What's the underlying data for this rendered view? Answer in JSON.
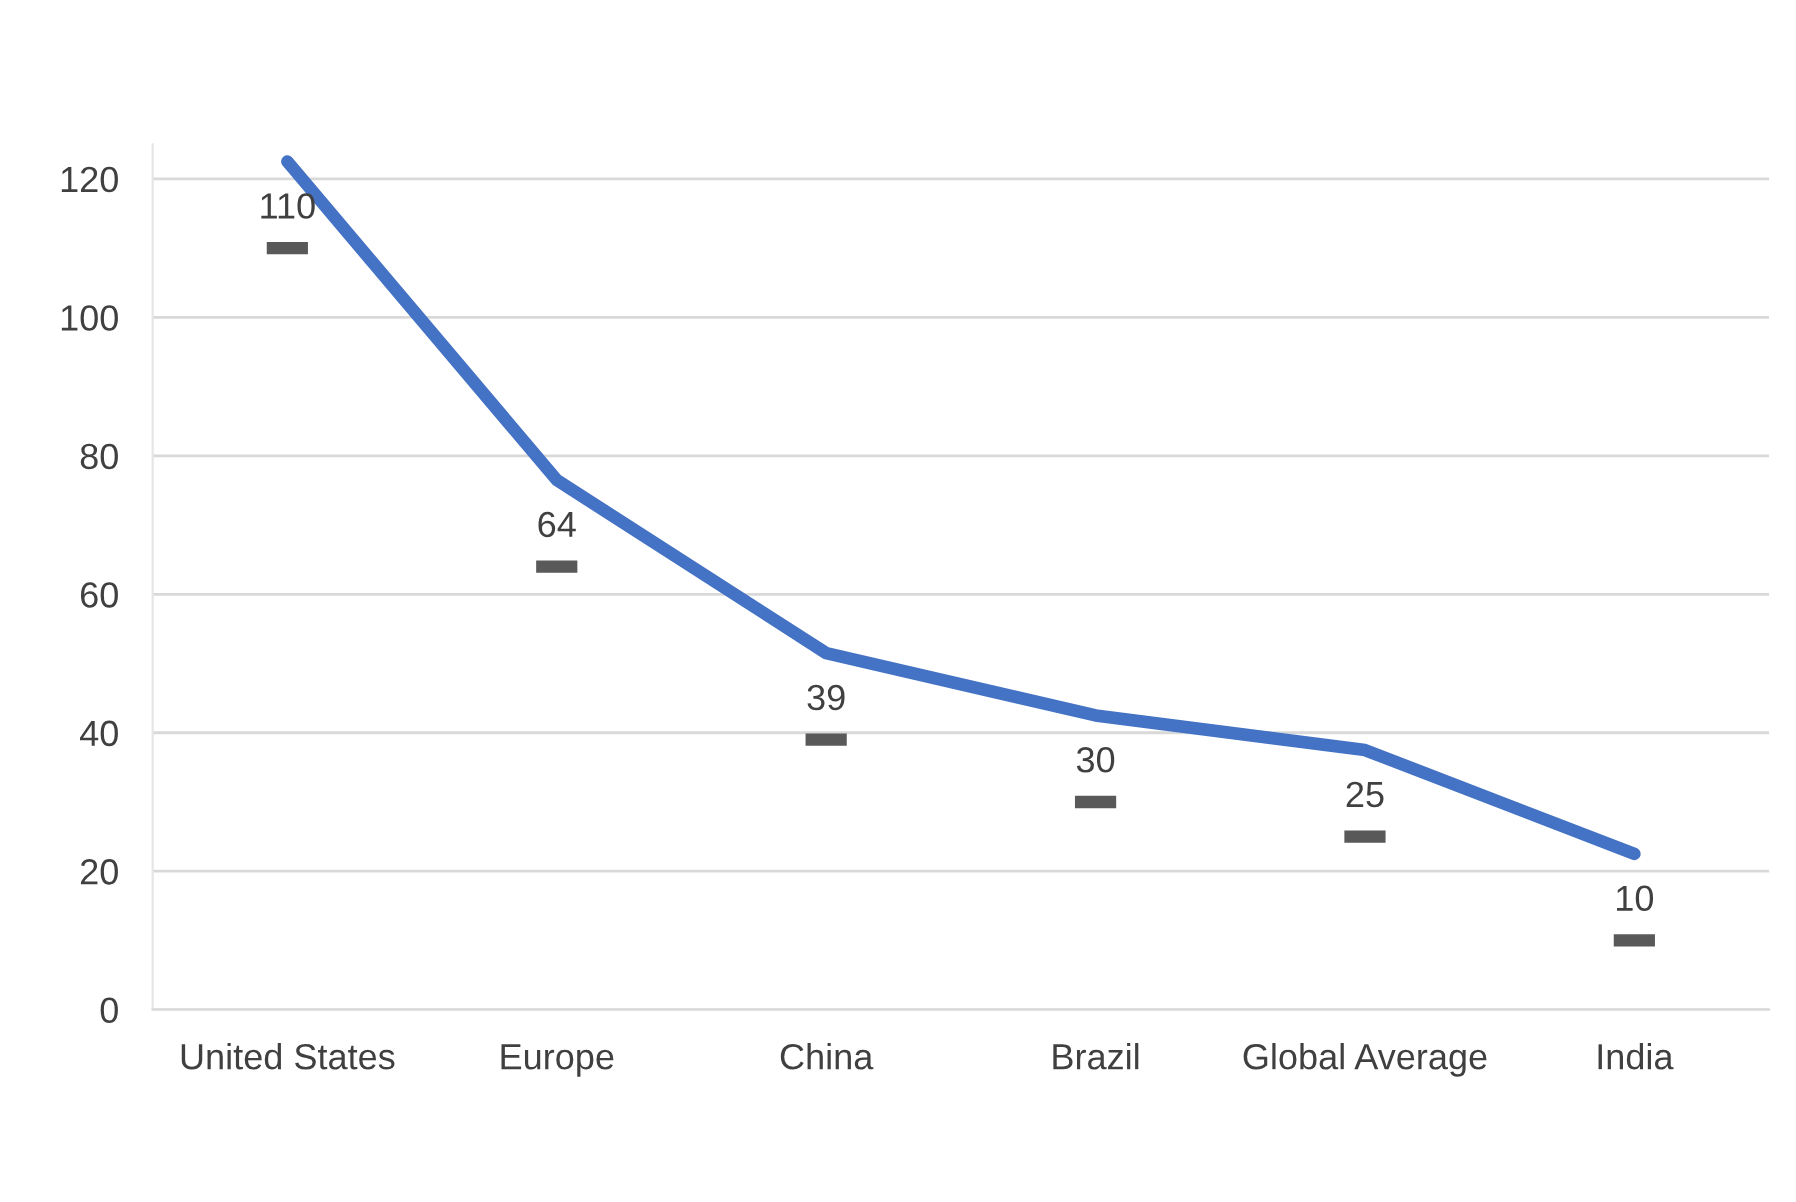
{
  "chart_data": {
    "type": "line",
    "categories": [
      "United States",
      "Europe",
      "China",
      "Brazil",
      "Global Average",
      "India"
    ],
    "series": [
      {
        "color": "#4472c4",
        "values": [
          122.5,
          76.5,
          51.5,
          42.5,
          37.5,
          22.5
        ]
      },
      {
        "type": "scatter",
        "color": "#595959",
        "values": [
          110,
          64,
          39,
          30,
          25,
          10
        ],
        "data_labels": true
      }
    ],
    "ylim": [
      0,
      125
    ],
    "yticks": [
      0,
      20,
      40,
      60,
      80,
      100,
      120
    ],
    "grid": "y",
    "legend": false
  }
}
